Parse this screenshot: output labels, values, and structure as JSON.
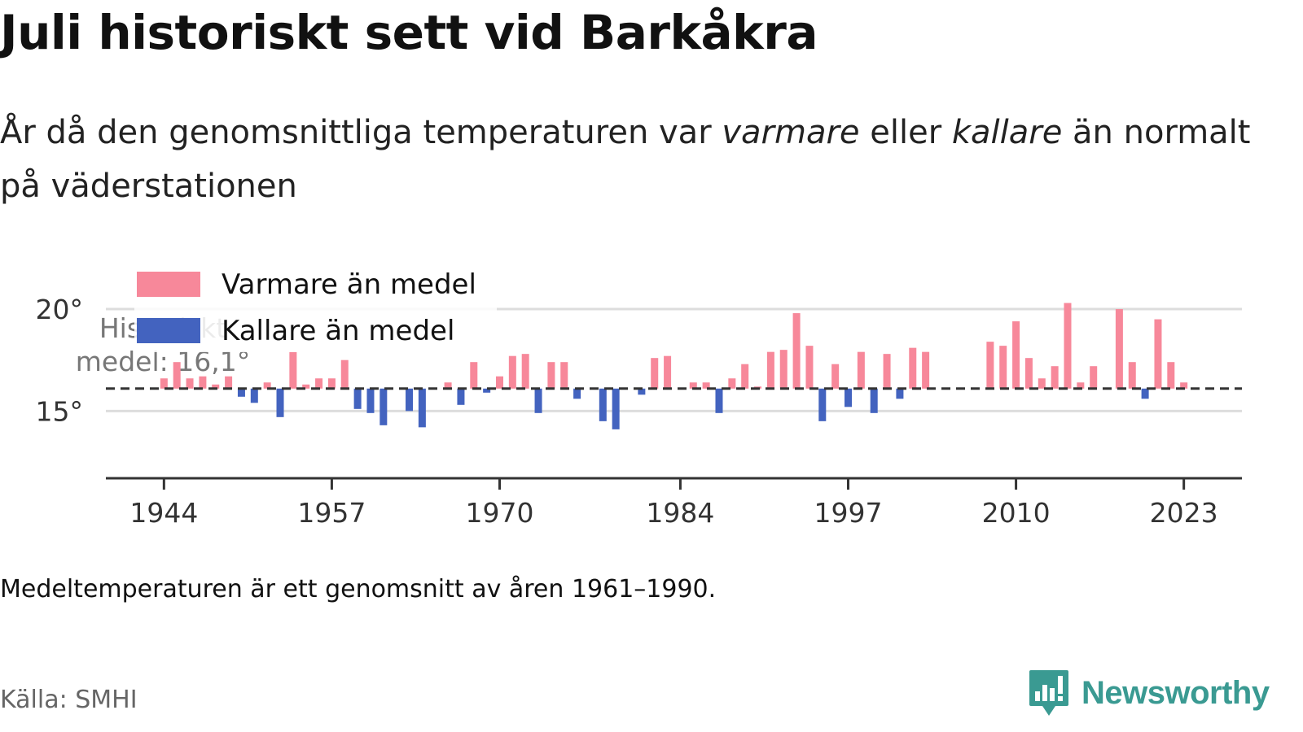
{
  "title": "Juli historiskt sett vid Barkåkra",
  "subtitle": {
    "part1": "År då den genomsnittliga temperaturen var ",
    "warm_word": "varmare",
    "part2": " eller ",
    "cold_word": "kallare",
    "part3": " än normalt på väderstationen"
  },
  "note": "Medeltemperaturen är ett genomsnitt av åren 1961–1990.",
  "source": "Källa: SMHI",
  "brand": "Newsworthy",
  "colors": {
    "warm": "#f7889a",
    "cold": "#4363bf",
    "grid": "#dddddd",
    "axis": "#333333",
    "brand": "#3a9a92"
  },
  "chart_data": {
    "type": "bar",
    "baseline": 16.1,
    "baseline_label": [
      "Historiskt",
      "medel: 16,1°"
    ],
    "ylim": [
      11.7,
      20.8
    ],
    "yticks": [
      15,
      20
    ],
    "ytick_labels": [
      "15°",
      "20°"
    ],
    "xlim": [
      1939.5,
      2027.5
    ],
    "xticks": [
      1944,
      1957,
      1970,
      1984,
      1997,
      2010,
      2023
    ],
    "legend": [
      {
        "label": "Varmare än medel",
        "series": "warm"
      },
      {
        "label": "Kallare än medel",
        "series": "cold"
      }
    ],
    "series": [
      {
        "name": "Julimedeltemperatur (°C)",
        "years": [
          1944,
          1945,
          1946,
          1947,
          1948,
          1949,
          1950,
          1951,
          1952,
          1953,
          1954,
          1955,
          1956,
          1957,
          1958,
          1959,
          1960,
          1961,
          1962,
          1963,
          1964,
          1965,
          1966,
          1967,
          1968,
          1969,
          1970,
          1971,
          1972,
          1973,
          1974,
          1975,
          1976,
          1977,
          1978,
          1979,
          1980,
          1981,
          1982,
          1983,
          1984,
          1985,
          1986,
          1987,
          1988,
          1989,
          1990,
          1991,
          1992,
          1993,
          1994,
          1995,
          1996,
          1997,
          1998,
          1999,
          2000,
          2001,
          2002,
          2003,
          2008,
          2009,
          2010,
          2011,
          2012,
          2013,
          2014,
          2015,
          2016,
          2017,
          2018,
          2019,
          2020,
          2021,
          2022,
          2023,
          2024
        ],
        "values": [
          16.6,
          17.4,
          16.6,
          16.7,
          16.3,
          16.7,
          15.7,
          15.4,
          16.4,
          14.7,
          17.9,
          16.3,
          16.6,
          16.6,
          17.5,
          15.1,
          14.9,
          14.3,
          16.1,
          15.0,
          14.2,
          16.1,
          16.4,
          15.3,
          17.4,
          15.9,
          16.7,
          17.7,
          17.8,
          14.9,
          17.4,
          17.4,
          15.6,
          16.1,
          14.5,
          14.1,
          16.1,
          15.8,
          17.6,
          17.7,
          16.1,
          16.4,
          16.4,
          14.9,
          16.6,
          17.3,
          16.2,
          17.9,
          18.0,
          19.8,
          18.2,
          14.5,
          17.3,
          15.2,
          17.9,
          14.9,
          17.8,
          15.6,
          18.1,
          17.9,
          18.4,
          18.2,
          19.4,
          17.6,
          16.6,
          17.2,
          20.3,
          16.4,
          17.2,
          16.1,
          20.0,
          17.4,
          15.6,
          19.5,
          17.4,
          16.4,
          16.1
        ]
      }
    ]
  }
}
